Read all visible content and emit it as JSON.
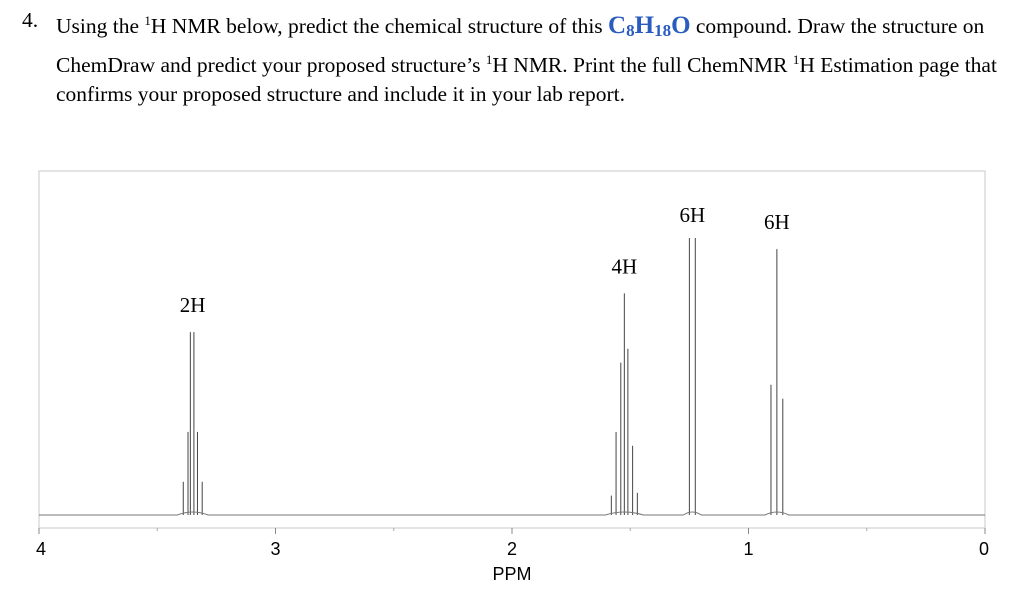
{
  "question": {
    "number": "4.",
    "part1": "Using the ",
    "sup1": "1",
    "part2": "H NMR below, predict the chemical structure of this ",
    "formula": {
      "c": "C",
      "c_n": "8",
      "h": "H",
      "h_n": "18",
      "o": "O"
    },
    "part3": " compound. Draw the structure on ChemDraw and predict your proposed structure’s ",
    "sup2": "1",
    "part4": "H NMR. Print the full ChemNMR ",
    "sup3": "1",
    "part5": "H Estimation page that confirms your proposed structure and include it in your lab report."
  },
  "chart_data": {
    "type": "nmr-spectrum",
    "xlabel": "PPM",
    "xlim": [
      4,
      0
    ],
    "x_ticks": [
      4,
      3,
      2,
      1,
      0
    ],
    "peaks": [
      {
        "ppm": 3.35,
        "integration": "2H",
        "lines": [
          [
            3.39,
            0.12
          ],
          [
            3.37,
            0.3
          ],
          [
            3.36,
            0.66
          ],
          [
            3.345,
            0.66
          ],
          [
            3.33,
            0.3
          ],
          [
            3.31,
            0.12
          ]
        ]
      },
      {
        "ppm": 1.53,
        "integration": "4H",
        "lines": [
          [
            1.58,
            0.07
          ],
          [
            1.56,
            0.3
          ],
          [
            1.54,
            0.55
          ],
          [
            1.525,
            0.8
          ],
          [
            1.51,
            0.6
          ],
          [
            1.49,
            0.25
          ],
          [
            1.47,
            0.08
          ]
        ]
      },
      {
        "ppm": 1.24,
        "integration": "6H",
        "lines": [
          [
            1.25,
            1.0
          ],
          [
            1.225,
            1.0
          ]
        ]
      },
      {
        "ppm": 0.88,
        "integration": "6H",
        "lines": [
          [
            0.905,
            0.47
          ],
          [
            0.88,
            0.96
          ],
          [
            0.855,
            0.42
          ]
        ]
      }
    ]
  }
}
